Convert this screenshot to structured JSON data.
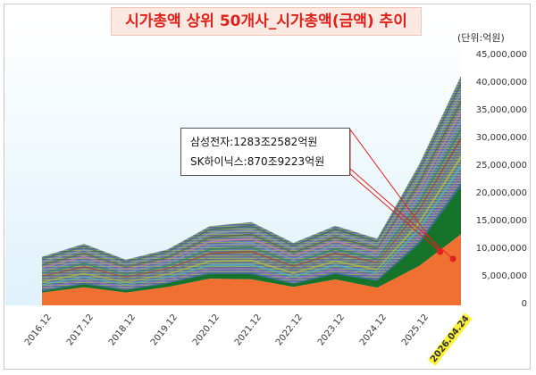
{
  "title": "시가총액 상위 50개사_시가총액(금액) 추이",
  "unit": "(단위:억원)",
  "annotations": [
    "삼성전자:1283조2582억원",
    "SK하이닉스:870조9223억원"
  ],
  "colors": {
    "samsung": "#ef7030",
    "skhynix": "#16732a",
    "others_palette": [
      "#3b5ea8",
      "#9b6cc4",
      "#4bb3c9",
      "#b4bf3a",
      "#7a7a7a",
      "#a54a2a",
      "#2e8b57",
      "#7b8fd6",
      "#c97bb0",
      "#5a6b3a",
      "#8a9aa8",
      "#3e6f5c"
    ],
    "annotation_line": "#e02020",
    "highlight": "#fff23a"
  },
  "chart_data": {
    "type": "area",
    "stacked": true,
    "title": "시가총액 상위 50개사_시가총액(금액) 추이",
    "ylabel": "(단위:억원)",
    "categories": [
      "2016.12",
      "2017.12",
      "2018.12",
      "2019.12",
      "2020.12",
      "2021.12",
      "2022.12",
      "2023.12",
      "2024.12",
      "2025.12",
      "2026.04.24"
    ],
    "highlight_category": "2026.04.24",
    "ylim": [
      0,
      45000000
    ],
    "yticks": [
      0,
      5000000,
      10000000,
      15000000,
      20000000,
      25000000,
      30000000,
      35000000,
      40000000,
      45000000
    ],
    "ytick_labels": [
      "0",
      "5,000,000",
      "10,000,000",
      "15,000,000",
      "20,000,000",
      "25,000,000",
      "30,000,000",
      "35,000,000",
      "40,000,000",
      "45,000,000"
    ],
    "series": [
      {
        "key": "samsung",
        "values": [
          2300000,
          3270000,
          2300000,
          3300000,
          4830000,
          4700000,
          3320000,
          4680000,
          3180000,
          7100000,
          12832582
        ]
      },
      {
        "key": "skhynix",
        "values": [
          280000,
          550000,
          440000,
          690000,
          860000,
          940000,
          550000,
          990000,
          1260000,
          4000000,
          8709223
        ]
      },
      {
        "key": "others",
        "values": [
          6200000,
          7300000,
          5500000,
          6100000,
          8600000,
          9400000,
          7400000,
          8700000,
          7600000,
          14300000,
          19900000
        ]
      }
    ]
  }
}
